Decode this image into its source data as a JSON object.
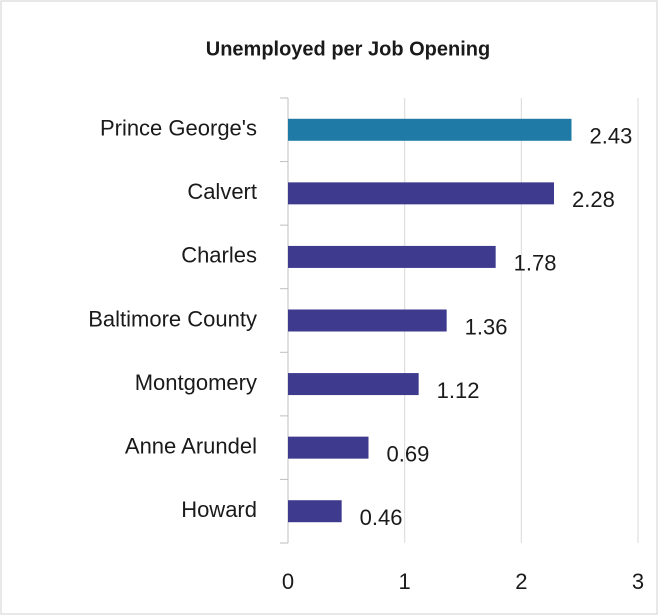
{
  "chart_data": {
    "type": "bar",
    "orientation": "horizontal",
    "title": "Unemployed per Job Opening",
    "categories": [
      "Prince George's",
      "Calvert",
      "Charles",
      "Baltimore County",
      "Montgomery",
      "Anne Arundel",
      "Howard"
    ],
    "values": [
      2.43,
      2.28,
      1.78,
      1.36,
      1.12,
      0.69,
      0.46
    ],
    "colors": [
      "#1f7ba6",
      "#3e3a8e",
      "#3e3a8e",
      "#3e3a8e",
      "#3e3a8e",
      "#3e3a8e",
      "#3e3a8e"
    ],
    "xlim": [
      0,
      3
    ],
    "xticks": [
      0,
      1,
      2,
      3
    ],
    "grid": true
  }
}
